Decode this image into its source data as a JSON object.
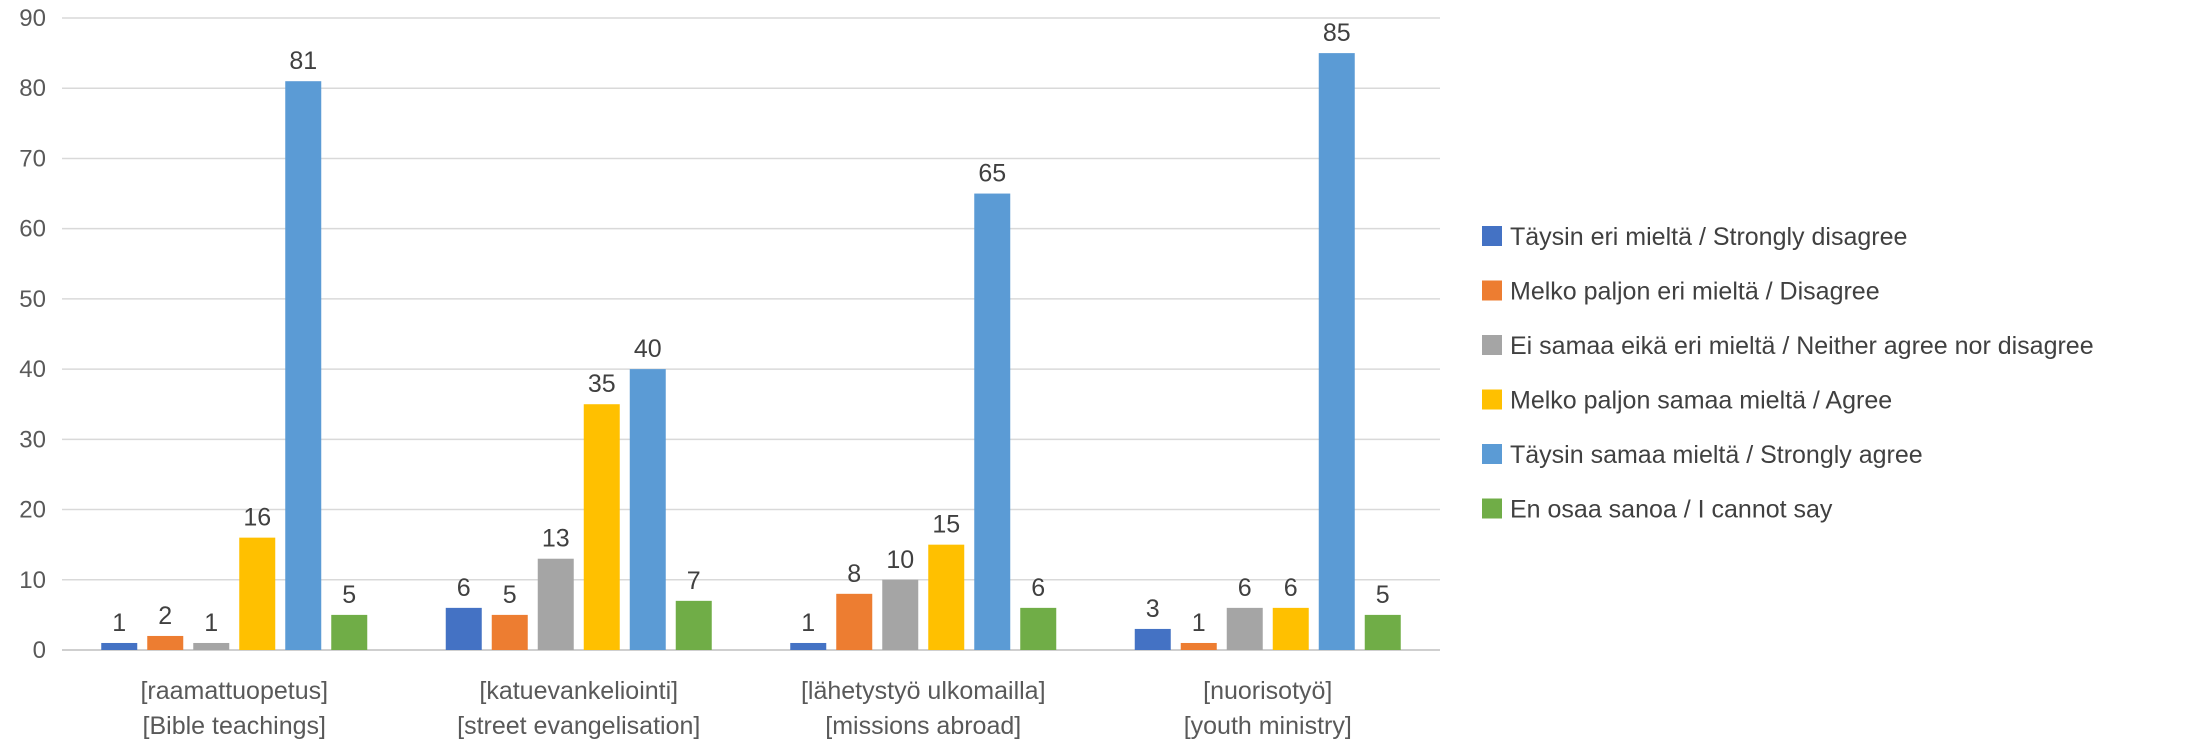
{
  "chart_data": {
    "type": "bar",
    "ylim": [
      0,
      90
    ],
    "yticks": [
      "0",
      "10",
      "20",
      "30",
      "40",
      "50",
      "60",
      "70",
      "80",
      "90"
    ],
    "grid": true,
    "legend_position": "right",
    "categories": [
      {
        "line1": "[raamattuopetus]",
        "line2": "[Bible teachings]"
      },
      {
        "line1": "[katuevankeliointi]",
        "line2": "[street evangelisation]"
      },
      {
        "line1": "[lähetystyö ulkomailla]",
        "line2": "[missions abroad]"
      },
      {
        "line1": "[nuorisotyö]",
        "line2": "[youth ministry]"
      }
    ],
    "series": [
      {
        "name": "Täysin eri mieltä / Strongly disagree",
        "color": "#4472C4",
        "values": [
          1,
          6,
          1,
          3
        ]
      },
      {
        "name": "Melko paljon eri mieltä / Disagree",
        "color": "#ED7D31",
        "values": [
          2,
          5,
          8,
          1
        ]
      },
      {
        "name": "Ei samaa eikä eri mieltä / Neither agree nor disagree",
        "color": "#A5A5A5",
        "values": [
          1,
          13,
          10,
          6
        ]
      },
      {
        "name": "Melko paljon samaa mieltä / Agree",
        "color": "#FFC000",
        "values": [
          16,
          35,
          15,
          6
        ]
      },
      {
        "name": "Täysin samaa mieltä / Strongly agree",
        "color": "#5B9BD5",
        "values": [
          81,
          40,
          65,
          85
        ]
      },
      {
        "name": "En osaa sanoa / I cannot say",
        "color": "#70AD47",
        "values": [
          5,
          7,
          6,
          5
        ]
      }
    ]
  }
}
